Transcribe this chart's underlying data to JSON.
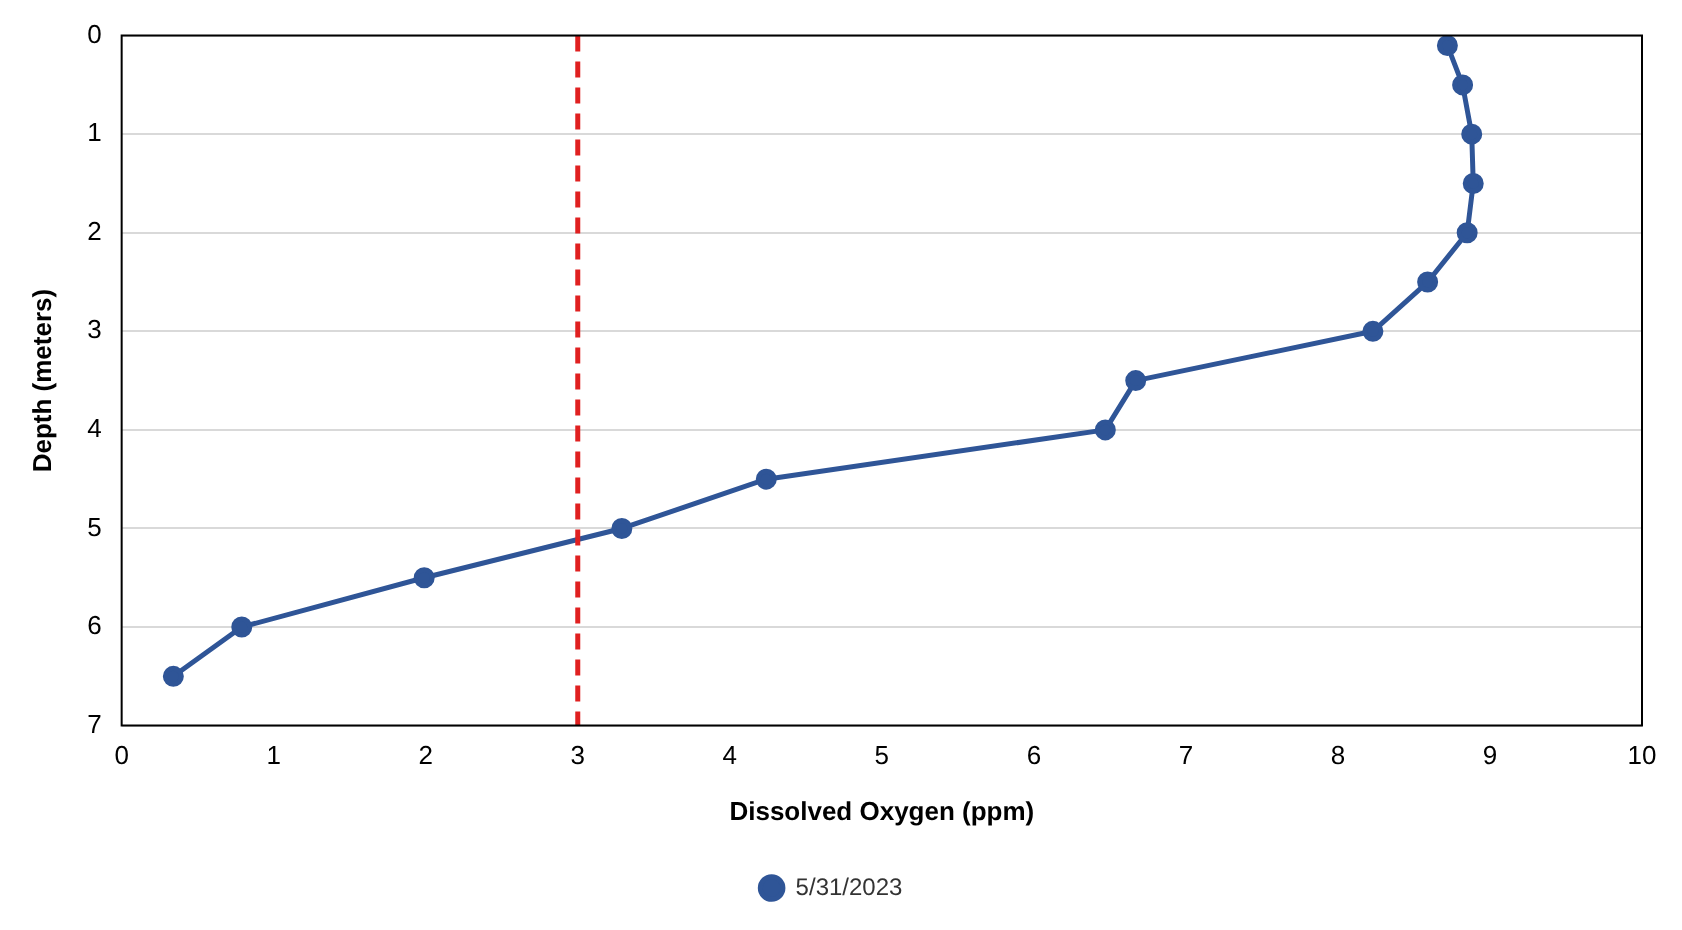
{
  "chart_data": {
    "type": "line",
    "xlabel": "Dissolved Oxygen (ppm)",
    "ylabel": "Depth (meters)",
    "series": [
      {
        "name": "5/31/2023",
        "color": "#2f5597",
        "x": [
          8.72,
          8.82,
          8.88,
          8.89,
          8.85,
          8.59,
          8.23,
          6.67,
          6.47,
          4.24,
          3.29,
          1.99,
          0.79,
          0.34
        ],
        "values": [
          0.1,
          0.5,
          1,
          1.5,
          2,
          2.5,
          3,
          3.5,
          4,
          4.5,
          5,
          5.5,
          6,
          6.5
        ]
      }
    ],
    "xlim": [
      0,
      10
    ],
    "xticks": [
      0,
      1,
      2,
      3,
      4,
      5,
      6,
      7,
      8,
      9,
      10
    ],
    "ylim": [
      7,
      0
    ],
    "yticks": [
      0,
      1,
      2,
      3,
      4,
      5,
      6,
      7
    ],
    "ref_lines": [
      {
        "axis": "x",
        "value": 3,
        "color": "#e02020",
        "line_style": "dashed"
      }
    ],
    "grid": "y",
    "legend": "bottom",
    "marker": "circle",
    "line_style": "solid"
  }
}
